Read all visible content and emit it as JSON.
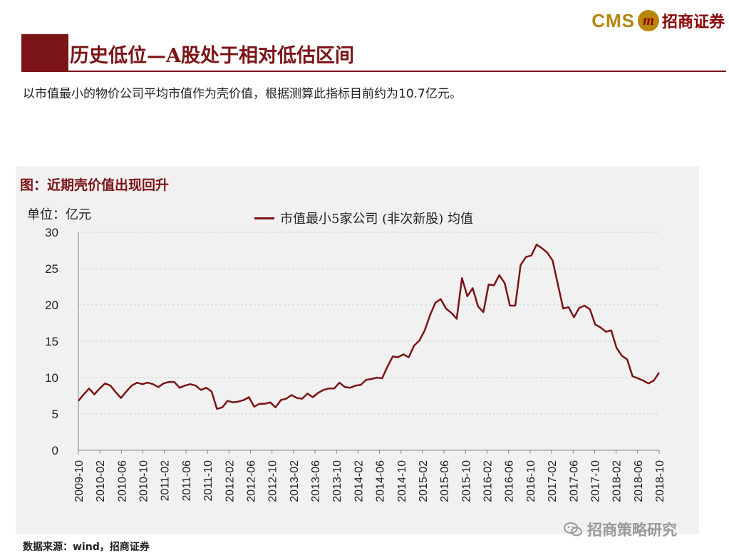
{
  "header": {
    "logo_cms": "CMS",
    "logo_mark": "m",
    "logo_cn": "招商证券",
    "brand_color": "#7b1416",
    "logo_gold": "#b8860b"
  },
  "title": "历史低位—A股处于相对低估区间",
  "subtitle": "以市值最小的物价公司平均市值作为壳价值，根据测算此指标目前约为10.7亿元。",
  "figure": {
    "title": "图：近期壳价值出现回升",
    "unit": "单位：亿元"
  },
  "chart_data": {
    "type": "line",
    "title": "图：近期壳价值出现回升",
    "ylabel": "单位：亿元",
    "xlabel": "",
    "ylim": [
      0,
      30
    ],
    "yticks": [
      0,
      5,
      10,
      15,
      20,
      25,
      30
    ],
    "grid": true,
    "legend_position": "top",
    "x_tick_labels": [
      "2009-10",
      "2010-02",
      "2010-06",
      "2010-10",
      "2011-02",
      "2011-06",
      "2011-10",
      "2012-02",
      "2012-06",
      "2012-10",
      "2013-02",
      "2013-06",
      "2013-10",
      "2014-02",
      "2014-06",
      "2014-10",
      "2015-02",
      "2015-06",
      "2015-10",
      "2016-02",
      "2016-06",
      "2016-10",
      "2017-02",
      "2017-06",
      "2017-10",
      "2018-02",
      "2018-06",
      "2018-10"
    ],
    "series": [
      {
        "name": "市值最小5家公司 (非次新股) 均值",
        "color": "#7b1416",
        "values": [
          6.8,
          7.7,
          8.5,
          7.7,
          8.5,
          9.2,
          8.9,
          8.0,
          7.2,
          8.1,
          8.9,
          9.3,
          9.1,
          9.3,
          9.1,
          8.7,
          9.2,
          9.4,
          9.4,
          8.6,
          8.9,
          9.1,
          8.9,
          8.3,
          8.6,
          8.1,
          5.7,
          5.9,
          6.8,
          6.6,
          6.7,
          6.9,
          7.3,
          6.0,
          6.4,
          6.4,
          6.6,
          5.9,
          6.9,
          7.1,
          7.6,
          7.2,
          7.1,
          7.8,
          7.3,
          7.9,
          8.3,
          8.5,
          8.5,
          9.3,
          8.7,
          8.6,
          8.9,
          9.0,
          9.7,
          9.8,
          10.0,
          9.9,
          11.5,
          12.9,
          12.8,
          13.2,
          12.8,
          14.4,
          15.1,
          16.5,
          18.6,
          20.3,
          20.8,
          19.5,
          18.9,
          18.1,
          23.7,
          21.2,
          22.3,
          19.8,
          19.0,
          22.8,
          22.7,
          24.1,
          23.0,
          19.9,
          19.9,
          25.5,
          26.6,
          26.8,
          28.3,
          27.8,
          27.2,
          26.1,
          22.8,
          19.5,
          19.7,
          18.3,
          19.6,
          19.9,
          19.4,
          17.3,
          16.9,
          16.3,
          16.5,
          14.1,
          13.0,
          12.5,
          10.2,
          9.9,
          9.6,
          9.2,
          9.6,
          10.7
        ]
      }
    ]
  },
  "source": "数据来源：wind，招商证券",
  "watermark": "招商策略研究"
}
